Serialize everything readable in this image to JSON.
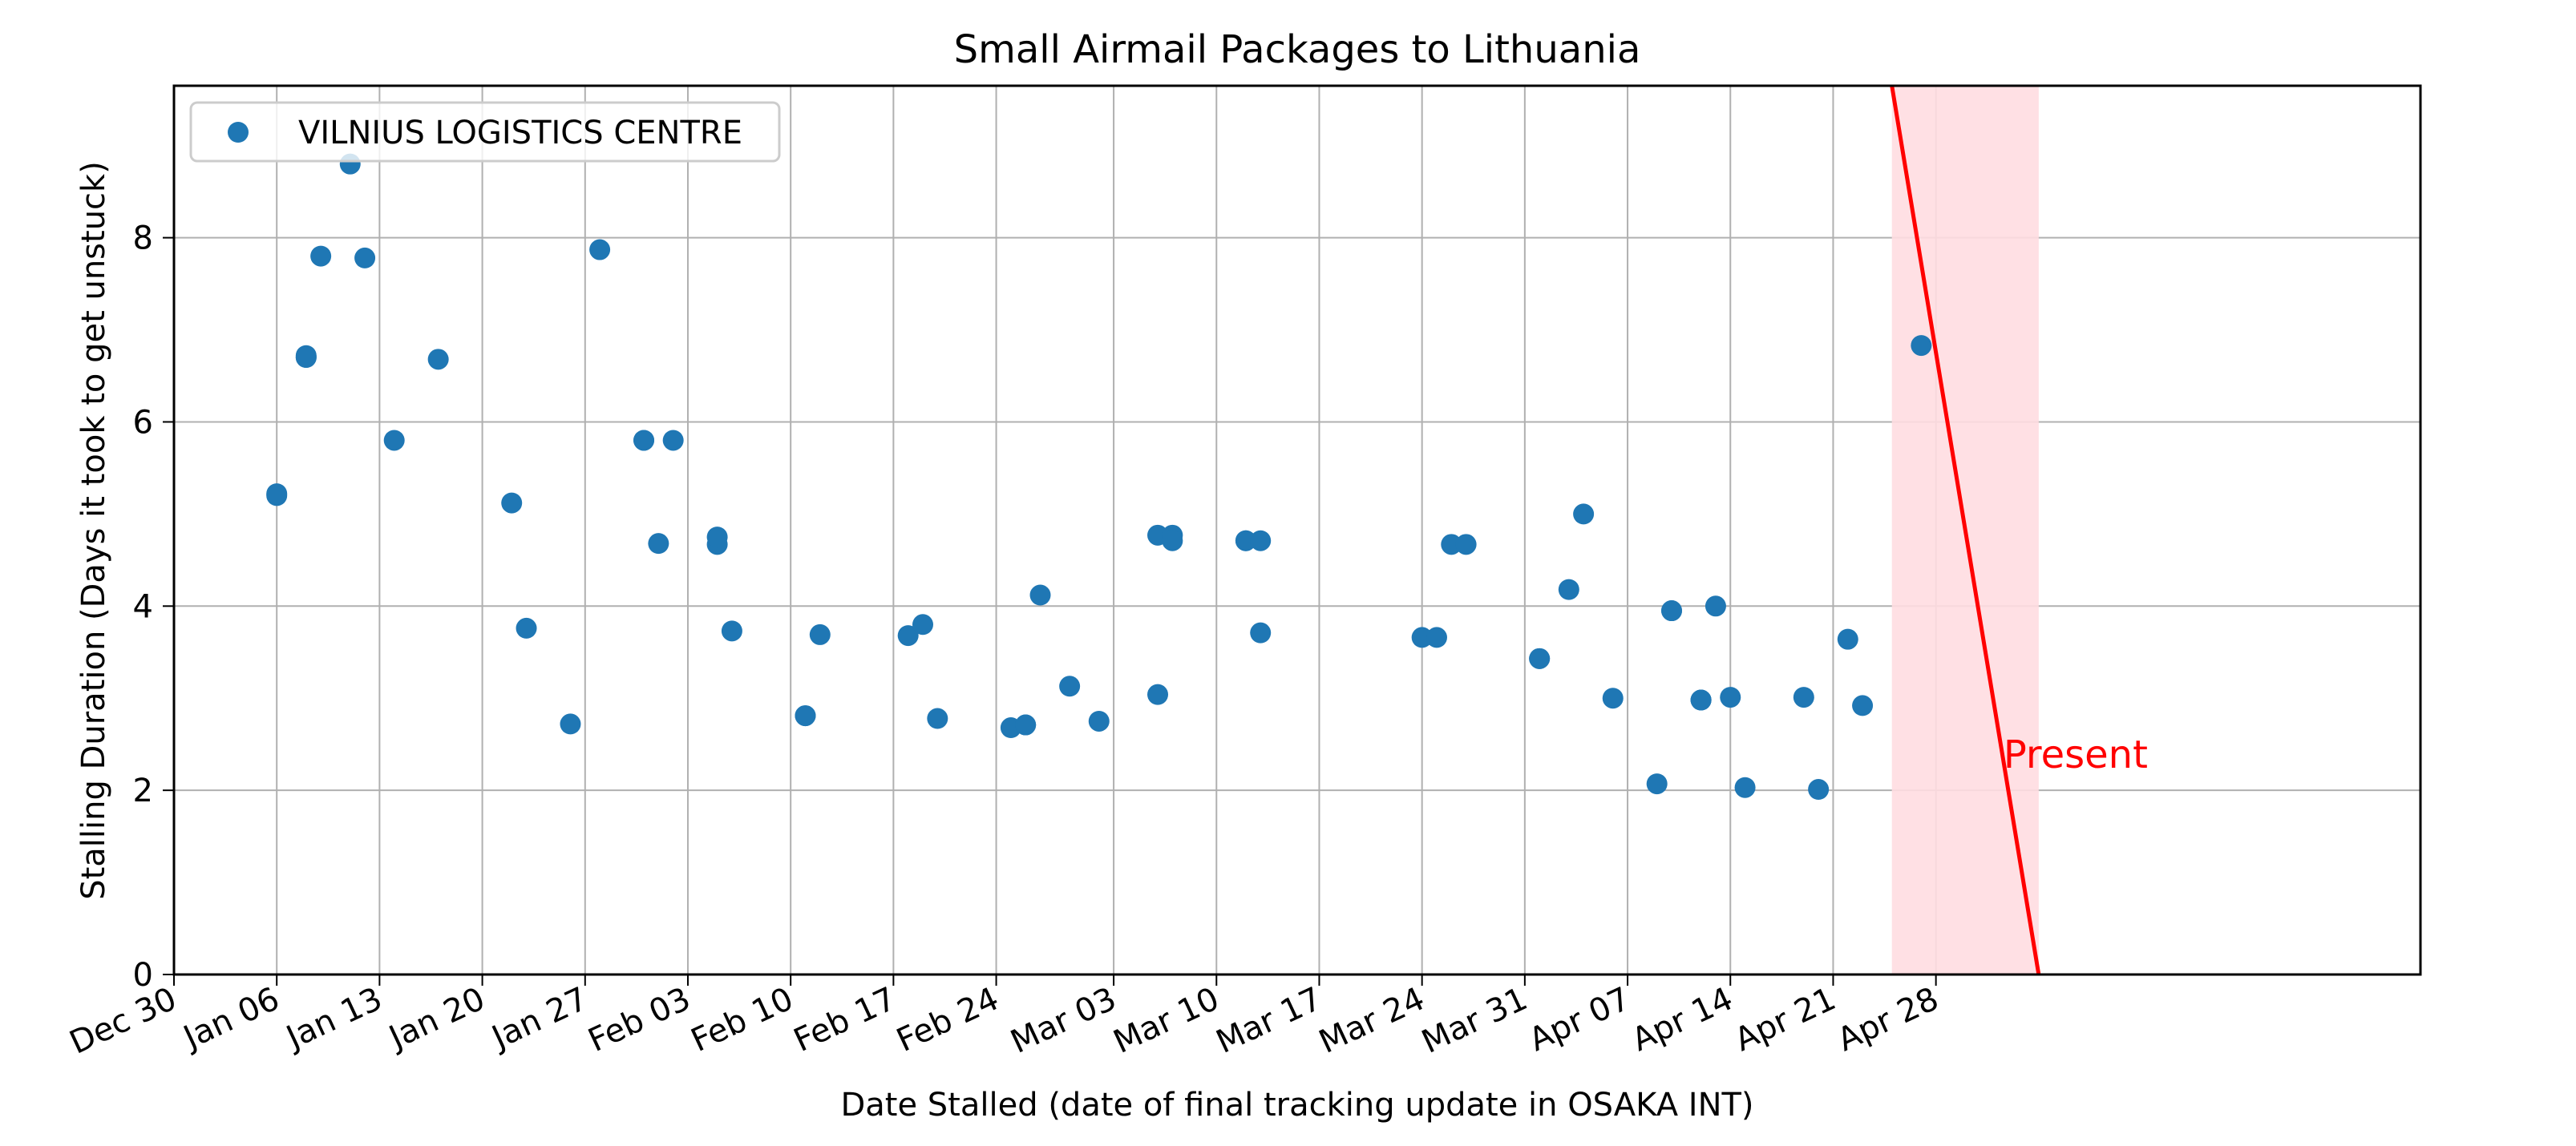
{
  "chart_data": {
    "type": "scatter",
    "title": "Small Airmail Packages to Lithuania",
    "xlabel": "Date Stalled (date of final tracking update in OSAKA INT)",
    "ylabel": "Stalling Duration (Days it took to get unstuck)",
    "xlim": [
      "Dec 30",
      "May 31"
    ],
    "ylim": [
      0,
      9.65
    ],
    "grid": true,
    "legend_position": "top-left",
    "x_tick_labels": [
      "Dec 30",
      "Jan 06",
      "Jan 13",
      "Jan 20",
      "Jan 27",
      "Feb 03",
      "Feb 10",
      "Feb 17",
      "Feb 24",
      "Mar 03",
      "Mar 10",
      "Mar 17",
      "Mar 24",
      "Mar 31",
      "Apr 07",
      "Apr 14",
      "Apr 21",
      "Apr 28"
    ],
    "y_tick_labels": [
      "0",
      "2",
      "4",
      "6",
      "8"
    ],
    "y_ticks": [
      0,
      2,
      4,
      6,
      8
    ],
    "series": [
      {
        "name": "VILNIUS LOGISTICS CENTRE",
        "color": "#1f77b4",
        "points": [
          {
            "x": "Jan 06",
            "y": 5.2
          },
          {
            "x": "Jan 06",
            "y": 5.22
          },
          {
            "x": "Jan 08",
            "y": 6.7
          },
          {
            "x": "Jan 08",
            "y": 6.72
          },
          {
            "x": "Jan 08",
            "y": 6.7
          },
          {
            "x": "Jan 09",
            "y": 7.8
          },
          {
            "x": "Jan 11",
            "y": 8.8
          },
          {
            "x": "Jan 12",
            "y": 7.78
          },
          {
            "x": "Jan 14",
            "y": 5.8
          },
          {
            "x": "Jan 17",
            "y": 6.68
          },
          {
            "x": "Jan 22",
            "y": 5.12
          },
          {
            "x": "Jan 23",
            "y": 3.76
          },
          {
            "x": "Jan 26",
            "y": 2.72
          },
          {
            "x": "Jan 28",
            "y": 7.87
          },
          {
            "x": "Jan 31",
            "y": 5.8
          },
          {
            "x": "Jan 31",
            "y": 5.8
          },
          {
            "x": "Feb 01",
            "y": 4.68
          },
          {
            "x": "Feb 02",
            "y": 5.8
          },
          {
            "x": "Feb 05",
            "y": 4.67
          },
          {
            "x": "Feb 05",
            "y": 4.75
          },
          {
            "x": "Feb 06",
            "y": 3.73
          },
          {
            "x": "Feb 11",
            "y": 2.81
          },
          {
            "x": "Feb 11",
            "y": 2.81
          },
          {
            "x": "Feb 12",
            "y": 3.69
          },
          {
            "x": "Feb 18",
            "y": 3.68
          },
          {
            "x": "Feb 19",
            "y": 3.8
          },
          {
            "x": "Feb 20",
            "y": 2.78
          },
          {
            "x": "Feb 25",
            "y": 2.68
          },
          {
            "x": "Feb 26",
            "y": 2.71
          },
          {
            "x": "Feb 26",
            "y": 2.71
          },
          {
            "x": "Feb 27",
            "y": 4.12
          },
          {
            "x": "Feb 29",
            "y": 3.13
          },
          {
            "x": "Mar 02",
            "y": 2.75
          },
          {
            "x": "Mar 06",
            "y": 3.04
          },
          {
            "x": "Mar 06",
            "y": 4.77
          },
          {
            "x": "Mar 07",
            "y": 4.77
          },
          {
            "x": "Mar 07",
            "y": 4.71
          },
          {
            "x": "Mar 12",
            "y": 4.71
          },
          {
            "x": "Mar 12",
            "y": 4.71
          },
          {
            "x": "Mar 13",
            "y": 4.71
          },
          {
            "x": "Mar 13",
            "y": 3.71
          },
          {
            "x": "Mar 24",
            "y": 3.66
          },
          {
            "x": "Mar 25",
            "y": 3.66
          },
          {
            "x": "Mar 26",
            "y": 4.67
          },
          {
            "x": "Mar 27",
            "y": 4.67
          },
          {
            "x": "Apr 01",
            "y": 3.43
          },
          {
            "x": "Apr 01",
            "y": 3.43
          },
          {
            "x": "Apr 03",
            "y": 4.18
          },
          {
            "x": "Apr 04",
            "y": 5.0
          },
          {
            "x": "Apr 06",
            "y": 3.0
          },
          {
            "x": "Apr 09",
            "y": 2.07
          },
          {
            "x": "Apr 10",
            "y": 3.95
          },
          {
            "x": "Apr 10",
            "y": 3.95
          },
          {
            "x": "Apr 12",
            "y": 2.98
          },
          {
            "x": "Apr 12",
            "y": 2.98
          },
          {
            "x": "Apr 12",
            "y": 2.98
          },
          {
            "x": "Apr 13",
            "y": 4.0
          },
          {
            "x": "Apr 14",
            "y": 3.01
          },
          {
            "x": "Apr 15",
            "y": 2.03
          },
          {
            "x": "Apr 19",
            "y": 3.01
          },
          {
            "x": "Apr 20",
            "y": 2.01
          },
          {
            "x": "Apr 22",
            "y": 3.64
          },
          {
            "x": "Apr 23",
            "y": 2.92
          },
          {
            "x": "Apr 27",
            "y": 6.83
          }
        ]
      }
    ],
    "trend_line": {
      "color": "#ff0000",
      "from": {
        "x": "Apr 25",
        "y": 9.65
      },
      "to": {
        "x": "May 05",
        "y": 0
      }
    },
    "shaded_region": {
      "color": "#ffdde1",
      "x_start": "Apr 25",
      "x_end": "May 05"
    },
    "annotation": {
      "text": "Present",
      "x": "May 05",
      "y": 2.4,
      "color": "#ff0000"
    }
  }
}
